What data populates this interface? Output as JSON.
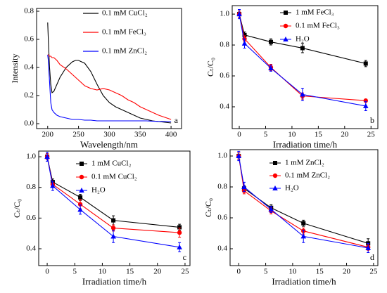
{
  "chart_data": [
    {
      "type": "line",
      "annotation": "a",
      "xlabel": "Wavelength/nm",
      "ylabel": "Intensity",
      "x": [
        200,
        201,
        203,
        205,
        207,
        210,
        215,
        220,
        230,
        240,
        245,
        250,
        260,
        270,
        280,
        290,
        300,
        310,
        320,
        330,
        340,
        350,
        360,
        370,
        380,
        390,
        400
      ],
      "series": [
        {
          "name": "0.1 mM CuCl₂",
          "color": "#000000",
          "values": [
            0.72,
            0.6,
            0.4,
            0.28,
            0.22,
            0.23,
            0.28,
            0.33,
            0.4,
            0.44,
            0.45,
            0.45,
            0.43,
            0.37,
            0.28,
            0.2,
            0.15,
            0.12,
            0.1,
            0.08,
            0.06,
            0.04,
            0.03,
            0.02,
            0.015,
            0.01,
            0.005
          ]
        },
        {
          "name": "0.1 mM FeCl₃",
          "color": "#ff0000",
          "values": [
            0.49,
            0.49,
            0.48,
            0.48,
            0.47,
            0.47,
            0.45,
            0.42,
            0.39,
            0.35,
            0.33,
            0.31,
            0.27,
            0.25,
            0.24,
            0.25,
            0.24,
            0.22,
            0.2,
            0.17,
            0.15,
            0.12,
            0.1,
            0.08,
            0.06,
            0.045,
            0.03
          ]
        },
        {
          "name": "0.1 mM ZnCl₂",
          "color": "#0000ff",
          "values": [
            0.49,
            0.45,
            0.3,
            0.15,
            0.1,
            0.08,
            0.06,
            0.05,
            0.04,
            0.03,
            0.03,
            0.03,
            0.025,
            0.025,
            0.02,
            0.02,
            0.02,
            0.02,
            0.02,
            0.02,
            0.02,
            0.02,
            0.02,
            0.018,
            0.016,
            0.015,
            0.015
          ]
        }
      ],
      "xlim": [
        182,
        417
      ],
      "ylim": [
        -0.035,
        0.82
      ],
      "xticks": [
        200,
        250,
        300,
        350,
        400
      ],
      "yticks": [
        {
          "value": 0,
          "label": "0.0"
        },
        0.2,
        0.4,
        0.6,
        0.8
      ],
      "legend": "upper right"
    },
    {
      "type": "line",
      "annotation": "b",
      "xlabel": "Irradiation time/h",
      "ylabel": "Cₜ/C₀",
      "x": [
        0,
        1,
        6,
        12,
        24
      ],
      "series": [
        {
          "name": "1 mM FeCl₃",
          "color": "#000000",
          "marker": "square",
          "values": [
            1.0,
            0.865,
            0.82,
            0.78,
            0.68
          ],
          "errors": [
            0.02,
            0.02,
            0.02,
            0.03,
            0.02
          ]
        },
        {
          "name": "0.1 mM FeCl₃",
          "color": "#ff0000",
          "marker": "circle",
          "values": [
            1.0,
            0.84,
            0.655,
            0.47,
            0.44
          ],
          "errors": [
            0.02,
            0.02,
            0.02,
            0.02,
            0.01
          ]
        },
        {
          "name": "H₂O",
          "color": "#0000ff",
          "marker": "triangle",
          "values": [
            1.0,
            0.81,
            0.65,
            0.48,
            0.405
          ],
          "errors": [
            0.03,
            0.03,
            0.02,
            0.04,
            0.03
          ]
        }
      ],
      "xlim": [
        -1.34,
        26.3
      ],
      "ylim": [
        0.259,
        1.055
      ],
      "xticks": [
        0,
        5,
        10,
        15,
        20,
        25
      ],
      "yticks": [
        0.4,
        0.6,
        0.8,
        {
          "value": 1,
          "label": "1.0"
        }
      ],
      "legend": "upper right"
    },
    {
      "type": "line",
      "annotation": "c",
      "xlabel": "Irradiation time/h",
      "ylabel": "Cₜ/C₀",
      "x": [
        0,
        1,
        6,
        12,
        24
      ],
      "series": [
        {
          "name": "1 mM CuCl₂",
          "color": "#000000",
          "marker": "square",
          "values": [
            1.0,
            0.835,
            0.735,
            0.585,
            0.54
          ],
          "errors": [
            0.02,
            0.02,
            0.02,
            0.03,
            0.02
          ]
        },
        {
          "name": "0.1 mM CuCl₂",
          "color": "#ff0000",
          "marker": "circle",
          "values": [
            1.0,
            0.82,
            0.69,
            0.535,
            0.505
          ],
          "errors": [
            0.02,
            0.02,
            0.03,
            0.02,
            0.03
          ]
        },
        {
          "name": "H₂O",
          "color": "#0000ff",
          "marker": "triangle",
          "values": [
            1.0,
            0.81,
            0.655,
            0.48,
            0.41
          ],
          "errors": [
            0.03,
            0.03,
            0.03,
            0.04,
            0.03
          ]
        }
      ],
      "xlim": [
        -1.54,
        25.9
      ],
      "ylim": [
        0.29,
        1.037
      ],
      "xticks": [
        0,
        5,
        10,
        15,
        20,
        25
      ],
      "yticks": [
        0.4,
        0.6,
        0.8,
        {
          "value": 1,
          "label": "1.0"
        }
      ],
      "legend": "upper right"
    },
    {
      "type": "line",
      "annotation": "d",
      "xlabel": "Irradiation time/h",
      "ylabel": "Cₜ/C₀",
      "x": [
        0,
        1,
        6,
        12,
        24
      ],
      "series": [
        {
          "name": "1 mM ZnCl₂",
          "color": "#000000",
          "marker": "square",
          "values": [
            1.0,
            0.79,
            0.665,
            0.565,
            0.435
          ],
          "errors": [
            0.02,
            0.02,
            0.02,
            0.02,
            0.03
          ]
        },
        {
          "name": "0.1 mM ZnCl₂",
          "color": "#ff0000",
          "marker": "circle",
          "values": [
            1.0,
            0.775,
            0.645,
            0.515,
            0.41
          ],
          "errors": [
            0.02,
            0.02,
            0.02,
            0.02,
            0.02
          ]
        },
        {
          "name": "H₂O",
          "color": "#0000ff",
          "marker": "triangle",
          "values": [
            1.0,
            0.8,
            0.655,
            0.48,
            0.405
          ],
          "errors": [
            0.03,
            0.03,
            0.02,
            0.04,
            0.03
          ]
        }
      ],
      "xlim": [
        -1.6,
        25.8
      ],
      "ylim": [
        0.291,
        1.041
      ],
      "xticks": [
        0,
        5,
        10,
        15,
        20,
        25
      ],
      "yticks": [
        0.4,
        0.6,
        0.8,
        {
          "value": 1,
          "label": "1.0"
        }
      ],
      "legend": "upper right"
    }
  ]
}
